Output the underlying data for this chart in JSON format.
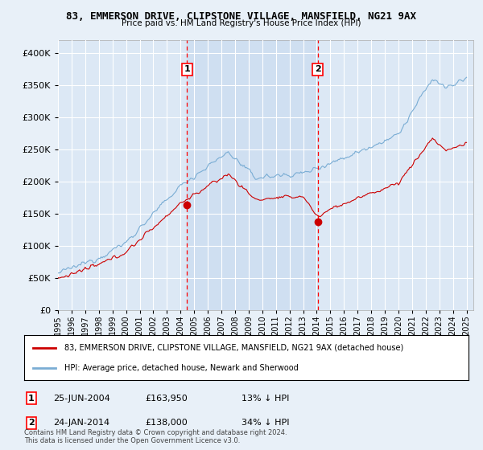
{
  "title": "83, EMMERSON DRIVE, CLIPSTONE VILLAGE, MANSFIELD, NG21 9AX",
  "subtitle": "Price paid vs. HM Land Registry's House Price Index (HPI)",
  "legend_line1": "83, EMMERSON DRIVE, CLIPSTONE VILLAGE, MANSFIELD, NG21 9AX (detached house)",
  "legend_line2": "HPI: Average price, detached house, Newark and Sherwood",
  "transaction1_date": "25-JUN-2004",
  "transaction1_price": "£163,950",
  "transaction1_hpi": "13% ↓ HPI",
  "transaction1_year": 2004.48,
  "transaction1_value": 163950,
  "transaction2_date": "24-JAN-2014",
  "transaction2_price": "£138,000",
  "transaction2_hpi": "34% ↓ HPI",
  "transaction2_year": 2014.07,
  "transaction2_value": 138000,
  "ylim": [
    0,
    420000
  ],
  "xlim": [
    1995,
    2025.5
  ],
  "yticks": [
    0,
    50000,
    100000,
    150000,
    200000,
    250000,
    300000,
    350000,
    400000
  ],
  "background_color": "#e8f0f8",
  "plot_bg": "#dce8f5",
  "shade_color": "#ccddf0",
  "grid_color": "#ffffff",
  "red_color": "#cc0000",
  "blue_color": "#7aadd4",
  "footnote": "Contains HM Land Registry data © Crown copyright and database right 2024.\nThis data is licensed under the Open Government Licence v3.0."
}
